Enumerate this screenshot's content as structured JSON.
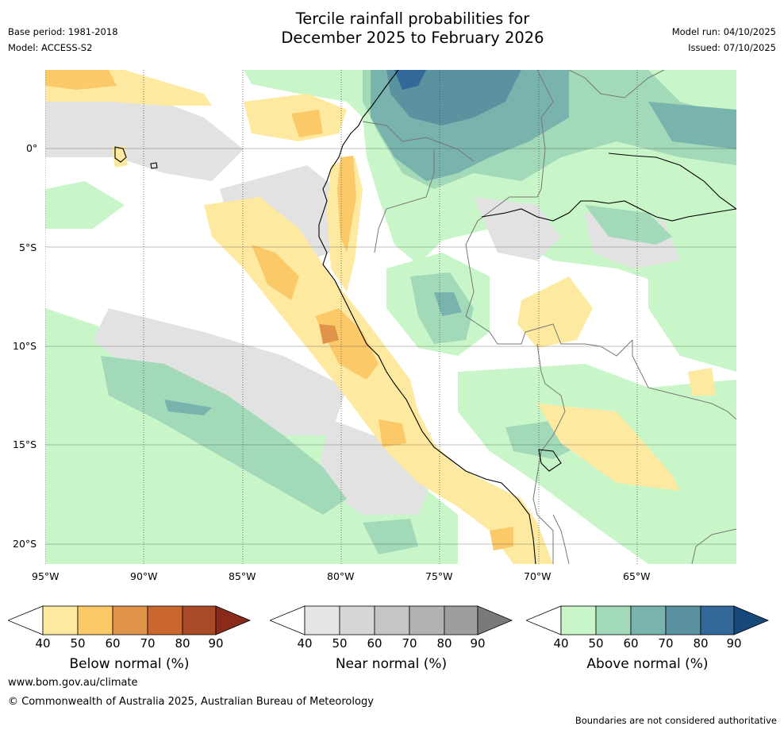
{
  "title": {
    "line1": "Tercile rainfall probabilities for",
    "line2": "December 2025 to February 2026"
  },
  "meta": {
    "base_period": "Base period: 1981-2018",
    "model": "Model: ACCESS-S2",
    "model_run": "Model run: 04/10/2025",
    "issued": "Issued: 07/10/2025"
  },
  "map": {
    "lat_labels": [
      "0°",
      "5°S",
      "10°S",
      "15°S",
      "20°S"
    ],
    "lon_labels": [
      "95°W",
      "90°W",
      "85°W",
      "80°W",
      "75°W",
      "70°W",
      "65°W"
    ],
    "lon_range": [
      -95,
      -60
    ],
    "lat_range": [
      -21,
      4
    ]
  },
  "colorbars": [
    {
      "label": "Below normal (%)",
      "ticks": [
        "40",
        "50",
        "60",
        "70",
        "80",
        "90"
      ],
      "colors": [
        "#fde9a0",
        "#fcc968",
        "#e0944a",
        "#c9672f",
        "#a94a27",
        "#8a2a1b"
      ]
    },
    {
      "label": "Near normal (%)",
      "ticks": [
        "40",
        "50",
        "60",
        "70",
        "80",
        "90"
      ],
      "colors": [
        "#e5e5e5",
        "#d6d6d6",
        "#c5c5c5",
        "#b2b2b2",
        "#9e9e9e",
        "#7a7a7a"
      ]
    },
    {
      "label": "Above normal (%)",
      "ticks": [
        "40",
        "50",
        "60",
        "70",
        "80",
        "90"
      ],
      "colors": [
        "#c9f6c8",
        "#a2d9b8",
        "#79b3ad",
        "#5b92a0",
        "#32689a",
        "#17487a"
      ]
    }
  ],
  "footer": {
    "url": "www.bom.gov.au/climate",
    "copyright": "© Commonwealth of Australia 2025, Australian Bureau of Meteorology",
    "disclaimer": "Boundaries are not considered authoritative"
  }
}
